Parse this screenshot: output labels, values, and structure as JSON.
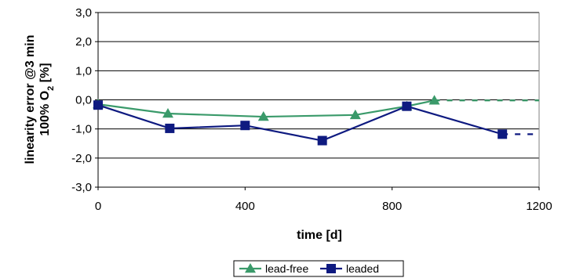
{
  "chart_data": {
    "type": "line",
    "xlabel": "time [d]",
    "ylabel": {
      "line1": "linearity error @3 min",
      "line2_prefix": "100% O",
      "line2_sub": "2",
      "line2_suffix": " [%]"
    },
    "xlim": [
      0,
      1200
    ],
    "ylim": [
      -3.0,
      3.0
    ],
    "x_ticks": [
      0,
      400,
      800,
      1200
    ],
    "x_tick_labels": [
      "0",
      "400",
      "800",
      "1200"
    ],
    "y_ticks": [
      3.0,
      2.0,
      1.0,
      0.0,
      -1.0,
      -2.0,
      -3.0
    ],
    "y_tick_labels": [
      "3,0",
      "2,0",
      "1,0",
      "0,0",
      "-1,0",
      "-2,0",
      "-3,0"
    ],
    "grid": "horizontal",
    "legend": "bottom",
    "series": [
      {
        "name": "lead-free",
        "color": "#3a9a6a",
        "marker": "triangle",
        "x": [
          0,
          190,
          450,
          700,
          840,
          915
        ],
        "y": [
          -0.15,
          -0.47,
          -0.58,
          -0.52,
          -0.22,
          -0.02
        ],
        "extension": {
          "x": [
            915,
            1200
          ],
          "y": [
            -0.02,
            -0.02
          ],
          "style": "dashed"
        }
      },
      {
        "name": "leaded",
        "color": "#0e1a80",
        "marker": "square",
        "x": [
          0,
          195,
          400,
          610,
          840,
          1100
        ],
        "y": [
          -0.18,
          -0.98,
          -0.88,
          -1.4,
          -0.22,
          -1.18
        ],
        "extension": {
          "x": [
            1100,
            1200
          ],
          "y": [
            -1.18,
            -1.18
          ],
          "style": "dashed"
        }
      }
    ]
  }
}
